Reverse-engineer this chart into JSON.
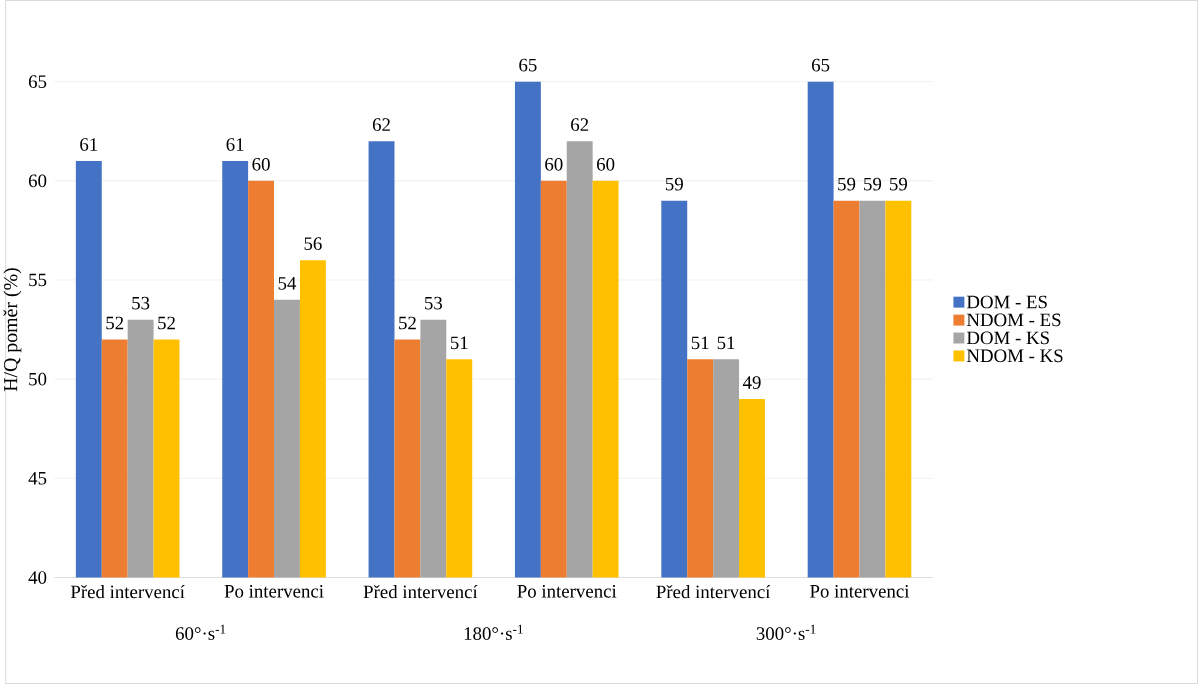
{
  "chart_data": {
    "type": "bar",
    "ylabel": "H/Q poměr (%)",
    "categories": [
      "Před intervencí",
      "Po intervenci",
      "Před intervencí",
      "Po intervenci",
      "Před intervencí",
      "Po intervenci"
    ],
    "series": [
      {
        "name": "DOM - ES",
        "color": "#4472c4",
        "values": [
          61,
          61,
          62,
          65,
          59,
          65
        ]
      },
      {
        "name": "NDOM - ES",
        "color": "#ed7d31",
        "values": [
          52,
          60,
          52,
          60,
          51,
          59
        ]
      },
      {
        "name": "DOM - KS",
        "color": "#a5a5a5",
        "values": [
          53,
          54,
          53,
          62,
          51,
          59
        ]
      },
      {
        "name": "NDOM - KS",
        "color": "#ffc000",
        "values": [
          52,
          56,
          51,
          60,
          49,
          59
        ]
      }
    ],
    "annotations": [
      "60°·s$^{-1}$",
      "180°·s$^{-1}$",
      "300°·s$^{-1}$"
    ],
    "ylim": [
      40,
      65
    ],
    "yticks": [
      40,
      45,
      50,
      55,
      60,
      65
    ],
    "grid": "y",
    "legend": "right",
    "data_labels": true
  }
}
